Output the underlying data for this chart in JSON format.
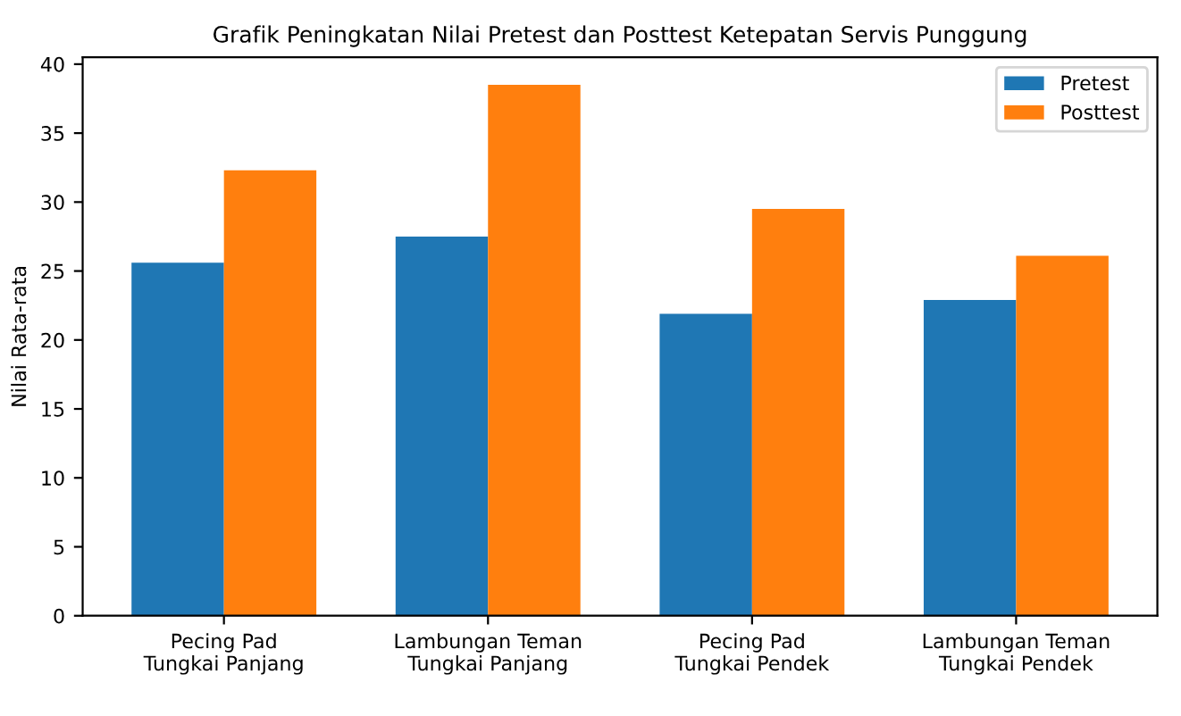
{
  "chart_data": {
    "type": "bar",
    "title": "Grafik Peningkatan Nilai Pretest dan Posttest Ketepatan Servis Punggung",
    "ylabel": "Nilai Rata-rata",
    "categories": [
      "Pecing Pad\nTungkai Panjang",
      "Lambungan Teman\nTungkai Panjang",
      "Pecing Pad\nTungkai Pendek",
      "Lambungan Teman\nTungkai Pendek"
    ],
    "series": [
      {
        "name": "Pretest",
        "color": "#1f77b4",
        "values": [
          25.6,
          27.5,
          21.9,
          22.9
        ]
      },
      {
        "name": "Posttest",
        "color": "#ff7f0e",
        "values": [
          32.3,
          38.5,
          29.5,
          26.1
        ]
      }
    ],
    "ylim": [
      0,
      40.5
    ],
    "yticks": [
      0,
      5,
      10,
      15,
      20,
      25,
      30,
      35,
      40
    ],
    "grid": false,
    "legend": "top right"
  }
}
